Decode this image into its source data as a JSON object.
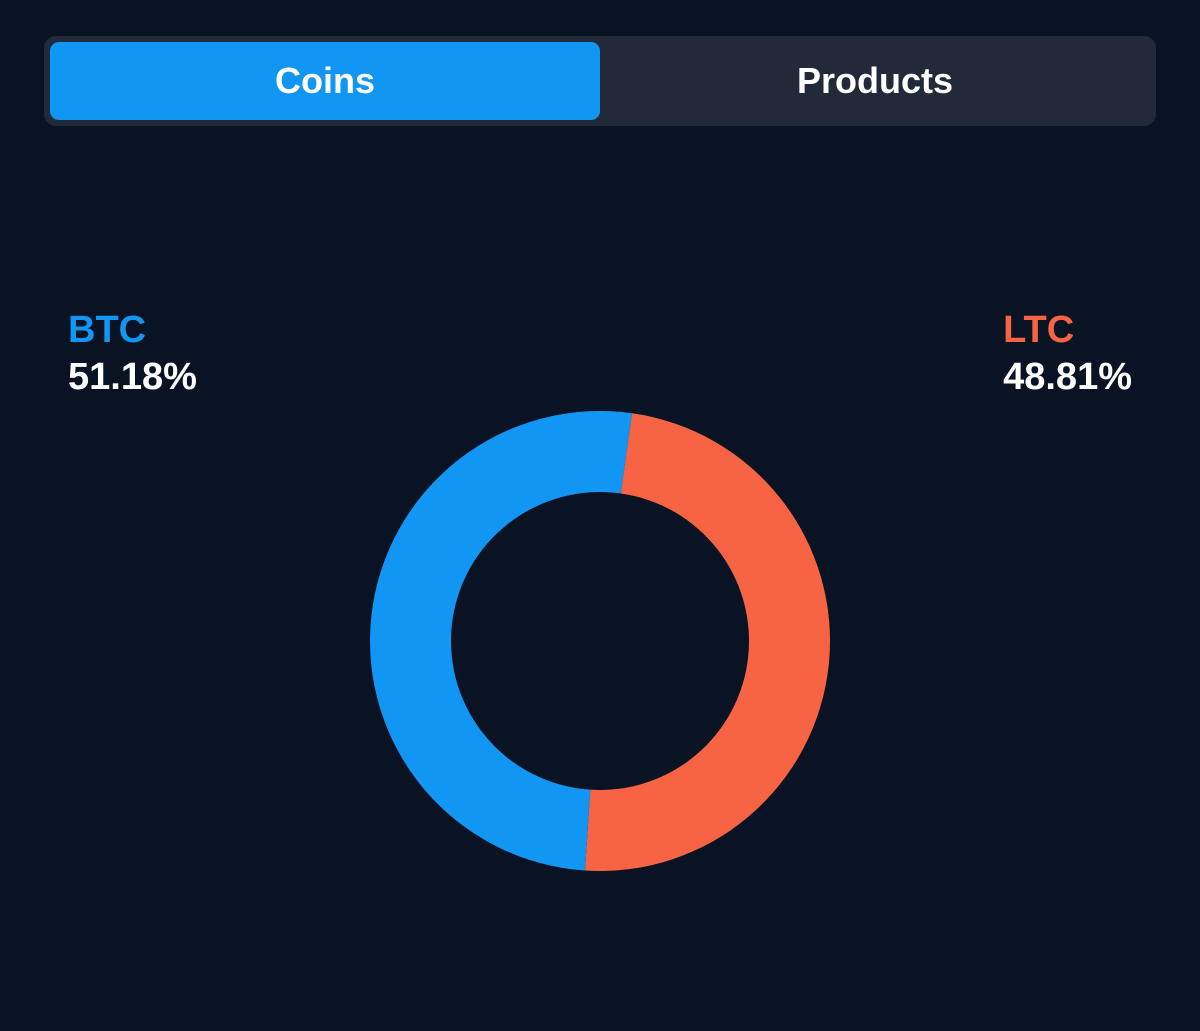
{
  "tabs": [
    {
      "label": "Coins",
      "active": true
    },
    {
      "label": "Products",
      "active": false
    }
  ],
  "colors": {
    "btc": "#1296f3",
    "ltc": "#f66444",
    "background": "#0a1324"
  },
  "chart_data": {
    "type": "pie",
    "style": "donut",
    "categories": [
      "BTC",
      "LTC"
    ],
    "values": [
      51.18,
      48.81
    ],
    "labels": [
      "51.18%",
      "48.81%"
    ],
    "title": ""
  }
}
